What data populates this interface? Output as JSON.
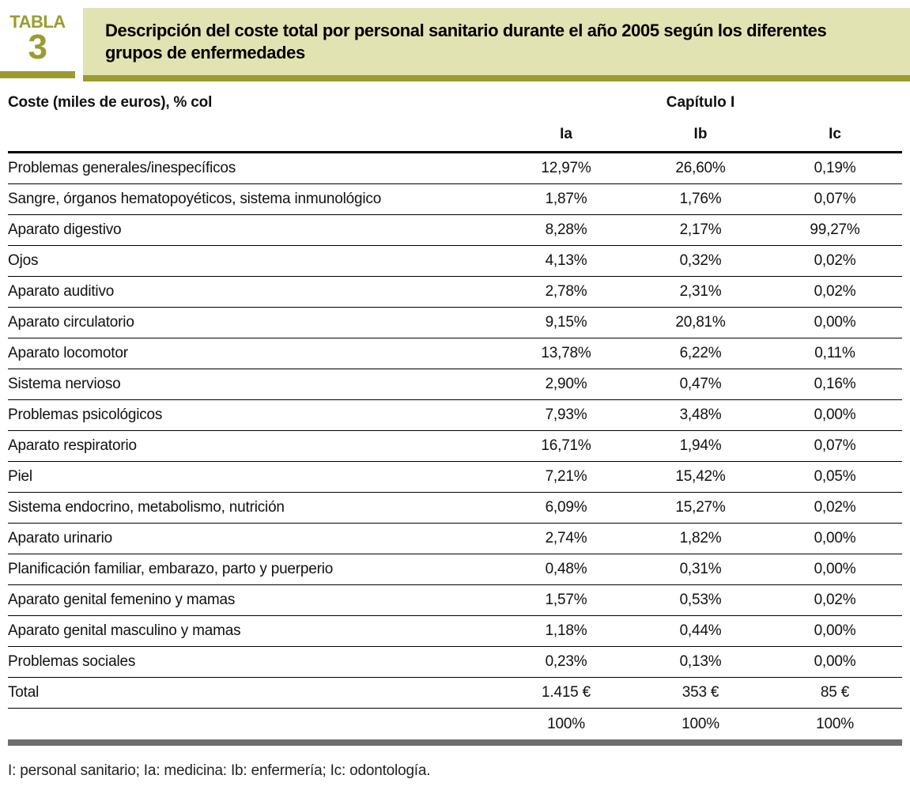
{
  "header": {
    "label_word": "TABLA",
    "label_number": "3",
    "title": "Descripción del coste total por personal sanitario durante el año 2005 según los diferentes grupos de enfermedades"
  },
  "table": {
    "corner_header": "Coste (miles de euros), % col",
    "group_header": "Capítulo I",
    "columns": [
      "Ia",
      "Ib",
      "Ic"
    ],
    "rows": [
      {
        "label": "Problemas generales/inespecíficos",
        "values": [
          "12,97%",
          "26,60%",
          "0,19%"
        ]
      },
      {
        "label": "Sangre, órganos hematopoyéticos, sistema inmunológico",
        "values": [
          "1,87%",
          "1,76%",
          "0,07%"
        ]
      },
      {
        "label": "Aparato digestivo",
        "values": [
          "8,28%",
          "2,17%",
          "99,27%"
        ]
      },
      {
        "label": "Ojos",
        "values": [
          "4,13%",
          "0,32%",
          "0,02%"
        ]
      },
      {
        "label": "Aparato auditivo",
        "values": [
          "2,78%",
          "2,31%",
          "0,02%"
        ]
      },
      {
        "label": "Aparato circulatorio",
        "values": [
          "9,15%",
          "20,81%",
          "0,00%"
        ]
      },
      {
        "label": "Aparato locomotor",
        "values": [
          "13,78%",
          "6,22%",
          "0,11%"
        ]
      },
      {
        "label": "Sistema nervioso",
        "values": [
          "2,90%",
          "0,47%",
          "0,16%"
        ]
      },
      {
        "label": "Problemas psicológicos",
        "values": [
          "7,93%",
          "3,48%",
          "0,00%"
        ]
      },
      {
        "label": "Aparato respiratorio",
        "values": [
          "16,71%",
          "1,94%",
          "0,07%"
        ]
      },
      {
        "label": "Piel",
        "values": [
          "7,21%",
          "15,42%",
          "0,05%"
        ]
      },
      {
        "label": "Sistema endocrino, metabolismo, nutrición",
        "values": [
          "6,09%",
          "15,27%",
          "0,02%"
        ]
      },
      {
        "label": "Aparato urinario",
        "values": [
          "2,74%",
          "1,82%",
          "0,00%"
        ]
      },
      {
        "label": "Planificación familiar, embarazo, parto y puerperio",
        "values": [
          "0,48%",
          "0,31%",
          "0,00%"
        ]
      },
      {
        "label": "Aparato genital femenino y mamas",
        "values": [
          "1,57%",
          "0,53%",
          "0,02%"
        ]
      },
      {
        "label": "Aparato genital masculino y mamas",
        "values": [
          "1,18%",
          "0,44%",
          "0,00%"
        ]
      },
      {
        "label": "Problemas sociales",
        "values": [
          "0,23%",
          "0,13%",
          "0,00%"
        ]
      }
    ],
    "total_row": {
      "label": "Total",
      "values": [
        "1.415 €",
        "353 €",
        "85 €"
      ]
    },
    "percent_row": {
      "label": "",
      "values": [
        "100%",
        "100%",
        "100%"
      ]
    }
  },
  "footnote": "I: personal sanitario; Ia: medicina: Ib: enfermería; Ic: odontología.",
  "colors": {
    "olive_accent": "#9a9c30",
    "title_background": "#e2e3b2",
    "bottom_bar_gray": "#6e6e6e"
  }
}
